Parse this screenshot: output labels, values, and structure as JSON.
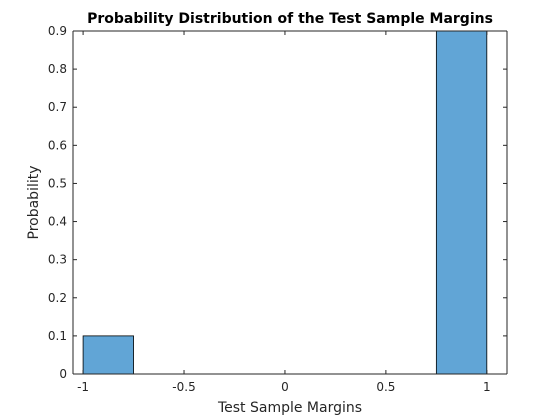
{
  "chart_data": {
    "type": "bar",
    "title": "Probability Distribution of the Test Sample Margins",
    "xlabel": "Test Sample Margins",
    "ylabel": "Probability",
    "xlim": [
      -1.05,
      1.1
    ],
    "ylim": [
      0,
      0.9
    ],
    "xticks": [
      -1,
      -0.5,
      0,
      0.5,
      1
    ],
    "xtick_labels": [
      "-1",
      "-0.5",
      "0",
      "0.5",
      "1"
    ],
    "yticks": [
      0,
      0.1,
      0.2,
      0.3,
      0.4,
      0.5,
      0.6,
      0.7,
      0.8,
      0.9
    ],
    "ytick_labels": [
      "0",
      "0.1",
      "0.2",
      "0.3",
      "0.4",
      "0.5",
      "0.6",
      "0.7",
      "0.8",
      "0.9"
    ],
    "bins": [
      {
        "x_start": -1.0,
        "x_end": -0.75,
        "value": 0.1
      },
      {
        "x_start": -0.75,
        "x_end": -0.5,
        "value": 0
      },
      {
        "x_start": -0.5,
        "x_end": -0.25,
        "value": 0
      },
      {
        "x_start": -0.25,
        "x_end": 0.0,
        "value": 0
      },
      {
        "x_start": 0.0,
        "x_end": 0.25,
        "value": 0
      },
      {
        "x_start": 0.25,
        "x_end": 0.5,
        "value": 0
      },
      {
        "x_start": 0.5,
        "x_end": 0.75,
        "value": 0
      },
      {
        "x_start": 0.75,
        "x_end": 1.0,
        "value": 0.9
      }
    ],
    "grid": false,
    "colors": {
      "bar_fill": "#61a5d6",
      "bar_edge": "#000000",
      "axis": "#262626"
    }
  }
}
